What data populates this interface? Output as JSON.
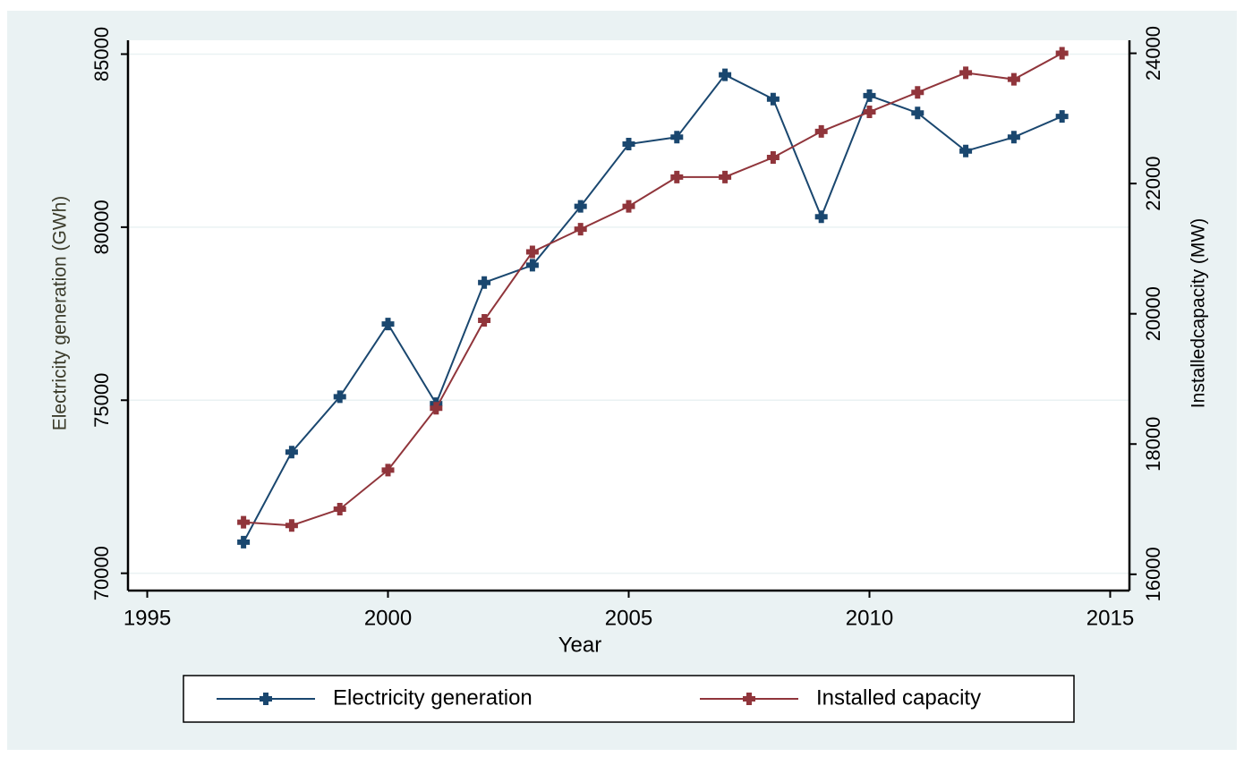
{
  "chart_data": {
    "type": "line",
    "x": [
      1997,
      1998,
      1999,
      2000,
      2001,
      2002,
      2003,
      2004,
      2005,
      2006,
      2007,
      2008,
      2009,
      2010,
      2011,
      2012,
      2013,
      2014
    ],
    "series": [
      {
        "name": "Electricity generation",
        "color": "#1a476f",
        "values": [
          70900,
          73500,
          75100,
          77200,
          74900,
          78400,
          78900,
          80600,
          82400,
          82600,
          84400,
          83700,
          80300,
          83800,
          83300,
          82200,
          82600,
          83200
        ]
      },
      {
        "name": "Installed capacity",
        "color": "#90353b",
        "axis": "y2",
        "values": [
          16800,
          16750,
          17000,
          17600,
          18550,
          19900,
          20950,
          21300,
          21650,
          22100,
          22100,
          22400,
          22800,
          23100,
          23400,
          23700,
          23600,
          24000
        ]
      }
    ],
    "xlabel": "Year",
    "ylabel": "Electricity generation (GWh)",
    "y2label": "Installedcapacity (MW)",
    "xlim": [
      1994.6,
      2015.4
    ],
    "xticks": [
      1995,
      2000,
      2005,
      2010,
      2015
    ],
    "ylim": [
      69500,
      85400
    ],
    "yticks": [
      70000,
      75000,
      80000,
      85000
    ],
    "y2lim": [
      15750,
      24200
    ],
    "y2ticks": [
      16000,
      18000,
      20000,
      22000,
      24000
    ],
    "grid": true,
    "legend": "bottom"
  }
}
